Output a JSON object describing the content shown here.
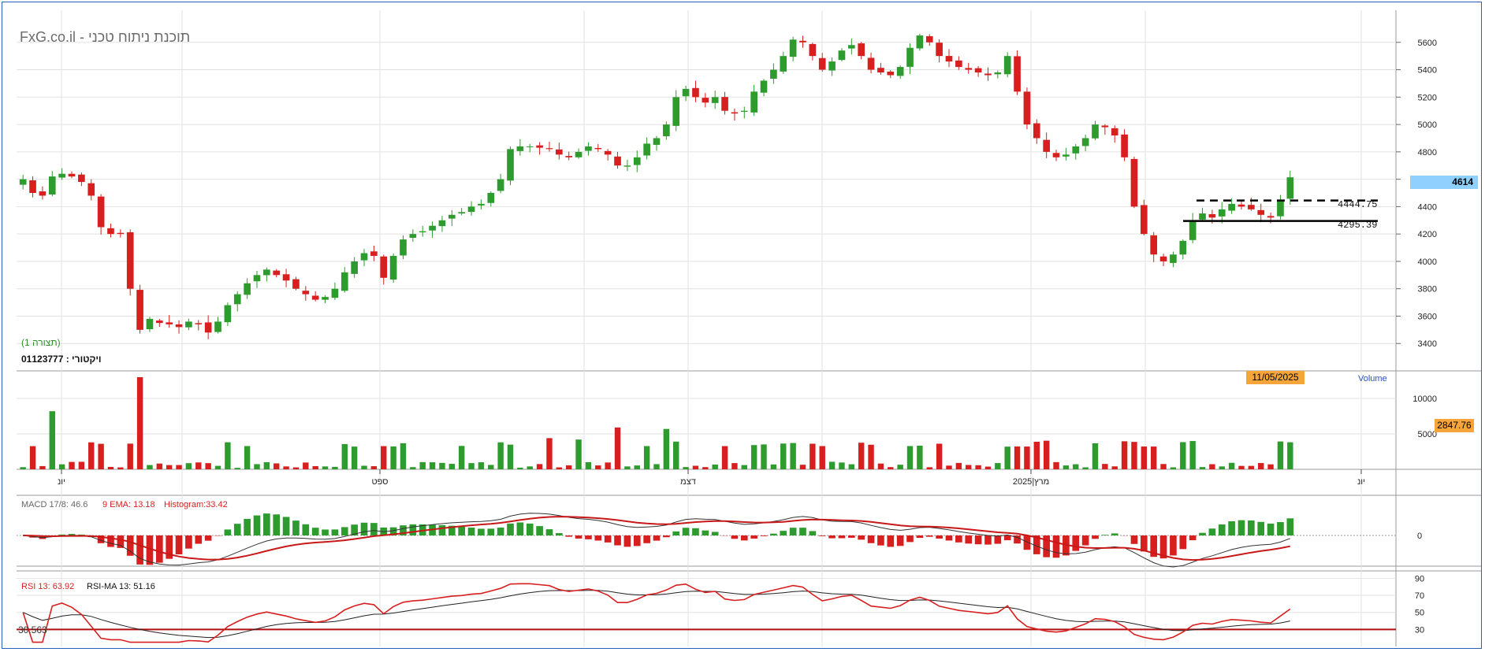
{
  "header": {
    "brand_text": "FxG.co.il - תוכנת ניתוח טכני",
    "chart_note": "(תצורה 1)",
    "account_label": "ויקטורי : 01123777"
  },
  "tags": {
    "last_price": "4614",
    "volume_value": "2847.76",
    "cursor_date": "11/05/2025",
    "volume_label": "Volume"
  },
  "levels": {
    "resistance_label": "4444.75",
    "support_label": "4295.39"
  },
  "indicators": {
    "macd_label": "MACD 17/8: 46.6",
    "ema_label": "9 EMA: 13.18",
    "hist_label": "Histogram:33.42",
    "rsi_label": "RSI 13: 63.92",
    "rsima_label": "RSI-MA 13: 51.16",
    "rsi_min_label": "30.563"
  },
  "colors": {
    "up": "#2e9b2e",
    "down": "#d81f1f",
    "grid": "#e2e2e2",
    "frame": "#2b61b8",
    "price_tag": "#8fd0ff",
    "orange_tag": "#f6a53a"
  },
  "chart_data": [
    {
      "type": "candlestick",
      "name": "price",
      "x_labels": [
        "יונ",
        "ספט",
        "דצמ",
        "מרץ|2025",
        "יונ"
      ],
      "y_ticks": [
        3400,
        3600,
        3800,
        4000,
        4200,
        4400,
        4600,
        4800,
        5000,
        5200,
        5400,
        5600
      ],
      "ylim": [
        3200,
        5800
      ],
      "last_price": 4614,
      "levels": [
        {
          "value": 4444.75,
          "style": "dashed"
        },
        {
          "value": 4295.39,
          "style": "solid"
        }
      ],
      "close": [
        4600,
        4500,
        4480,
        4620,
        4640,
        4620,
        4580,
        4480,
        4250,
        4200,
        4200,
        3800,
        3500,
        3580,
        3550,
        3540,
        3520,
        3560,
        3540,
        3480,
        3560,
        3680,
        3760,
        3840,
        3900,
        3940,
        3900,
        3860,
        3800,
        3760,
        3720,
        3740,
        3800,
        3920,
        4000,
        4060,
        4040,
        3880,
        4040,
        4160,
        4200,
        4220,
        4260,
        4300,
        4340,
        4360,
        4400,
        4420,
        4500,
        4600,
        4820,
        4840,
        4840,
        4830,
        4820,
        4780,
        4760,
        4800,
        4840,
        4820,
        4780,
        4700,
        4700,
        4760,
        4860,
        4900,
        5000,
        5200,
        5260,
        5200,
        5160,
        5200,
        5100,
        5080,
        5100,
        5240,
        5320,
        5400,
        5500,
        5620,
        5600,
        5500,
        5400,
        5460,
        5540,
        5580,
        5500,
        5400,
        5380,
        5360,
        5420,
        5560,
        5650,
        5600,
        5500,
        5460,
        5420,
        5400,
        5380,
        5360,
        5380,
        5500,
        5240,
        5000,
        4900,
        4800,
        4760,
        4780,
        4840,
        4900,
        5000,
        4980,
        4920,
        4760,
        4400,
        4200,
        4050,
        4000,
        4050,
        4150,
        4300,
        4350,
        4320,
        4380,
        4420,
        4400,
        4380,
        4340,
        4320,
        4450,
        4614
      ],
      "volume_ylim": [
        0,
        13000
      ],
      "volume_ticks": [
        5000,
        10000
      ],
      "volume_last": 2847.76
    },
    {
      "type": "line",
      "name": "MACD",
      "zero_label": "0",
      "series": [
        "MACD 17/8",
        "9 EMA",
        "Histogram"
      ]
    },
    {
      "type": "line",
      "name": "RSI",
      "y_ticks": [
        30,
        50,
        70,
        90
      ],
      "ylim": [
        10,
        95
      ],
      "reference_line": 30,
      "series": [
        "RSI 13",
        "RSI-MA 13"
      ],
      "last_rsi": 63.92,
      "last_rsima": 51.16,
      "rsi_min": 30.563
    }
  ]
}
